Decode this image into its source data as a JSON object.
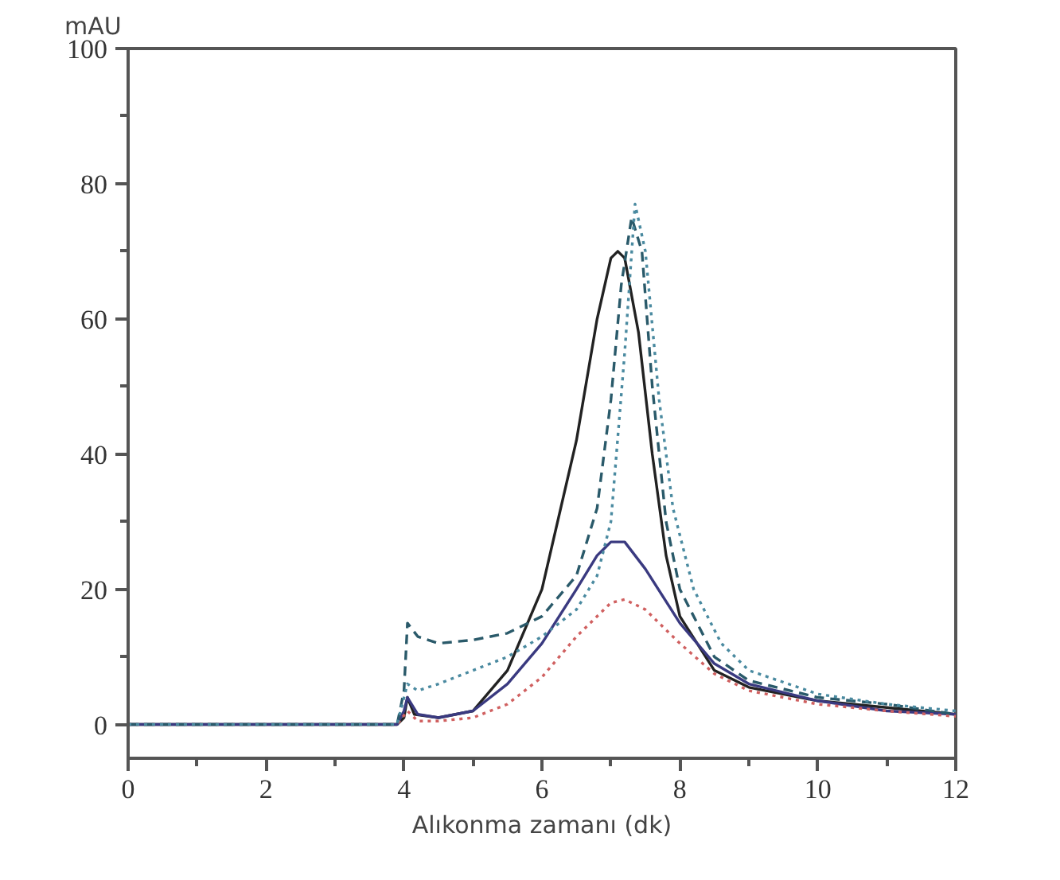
{
  "chart_data": {
    "type": "line",
    "xlabel": "Alıkonma zamanı (dk)",
    "ylabel": "mAU",
    "xlim": [
      0,
      12
    ],
    "ylim": [
      -5,
      100
    ],
    "xticks": [
      0,
      {
        "value": 1,
        "label": null
      },
      2,
      {
        "value": 3,
        "label": null
      },
      4,
      {
        "value": 5,
        "label": null
      },
      6,
      {
        "value": 7,
        "label": null
      },
      8,
      {
        "value": 9,
        "label": null
      },
      10,
      {
        "value": 11,
        "label": null
      },
      12
    ],
    "yticks": [
      0,
      {
        "value": 10,
        "label": null
      },
      20,
      {
        "value": 30,
        "label": null
      },
      40,
      {
        "value": 50,
        "label": null
      },
      60,
      {
        "value": 70,
        "label": null
      },
      80,
      {
        "value": 90,
        "label": null
      },
      100
    ],
    "series": [
      {
        "color": "#222222",
        "line_style": "solid",
        "x": [
          0,
          3.9,
          4.0,
          4.05,
          4.15,
          4.5,
          5,
          5.5,
          6,
          6.5,
          6.8,
          7.0,
          7.1,
          7.2,
          7.4,
          7.6,
          7.8,
          8,
          8.5,
          9,
          10,
          11,
          12
        ],
        "values": [
          0,
          0,
          1,
          4,
          1.5,
          1,
          2,
          8,
          20,
          42,
          60,
          69,
          70,
          69,
          58,
          40,
          25,
          16,
          8,
          5.5,
          3.5,
          2.5,
          1.5
        ]
      },
      {
        "color": "#3a3a80",
        "line_style": "solid",
        "x": [
          0,
          3.9,
          4.0,
          4.05,
          4.2,
          4.5,
          5,
          5.5,
          6,
          6.5,
          6.8,
          7.0,
          7.2,
          7.5,
          8,
          8.5,
          9,
          10,
          11,
          12
        ],
        "values": [
          0,
          0,
          2,
          4,
          1.5,
          1,
          2,
          6,
          12,
          20,
          25,
          27,
          27,
          23,
          15,
          9,
          6,
          3.5,
          2,
          1.5
        ]
      },
      {
        "color": "#d06060",
        "line_style": "dotted",
        "x": [
          0,
          3.9,
          4.05,
          4.2,
          4.5,
          5,
          5.5,
          6,
          6.5,
          7,
          7.2,
          7.5,
          8,
          8.5,
          9,
          10,
          11,
          12
        ],
        "values": [
          0,
          0,
          2,
          0.5,
          0.5,
          1,
          3,
          7,
          13,
          18,
          18.5,
          17,
          12,
          7.5,
          5,
          3,
          2,
          1.2
        ]
      },
      {
        "color": "#2a5a6a",
        "line_style": "dashed",
        "x": [
          0,
          3.9,
          4.0,
          4.05,
          4.2,
          4.5,
          5,
          5.5,
          6,
          6.5,
          6.8,
          7.0,
          7.15,
          7.3,
          7.45,
          7.6,
          7.8,
          8,
          8.5,
          9,
          10,
          11,
          12
        ],
        "values": [
          0,
          0,
          5,
          15,
          13,
          12,
          12.5,
          13.5,
          16,
          22,
          32,
          48,
          65,
          75,
          70,
          50,
          30,
          20,
          10,
          6.5,
          4,
          3,
          1.5
        ]
      },
      {
        "color": "#4a8aa0",
        "line_style": "dotted",
        "x": [
          0,
          3.9,
          4.05,
          4.2,
          4.5,
          5,
          5.5,
          6,
          6.5,
          6.8,
          7.0,
          7.2,
          7.35,
          7.5,
          7.7,
          7.9,
          8.2,
          8.6,
          9,
          10,
          11,
          12
        ],
        "values": [
          0,
          0,
          6,
          5,
          6,
          8,
          10,
          13,
          17,
          22,
          30,
          55,
          77,
          70,
          48,
          32,
          20,
          12,
          8,
          4.5,
          3,
          2
        ]
      }
    ]
  }
}
